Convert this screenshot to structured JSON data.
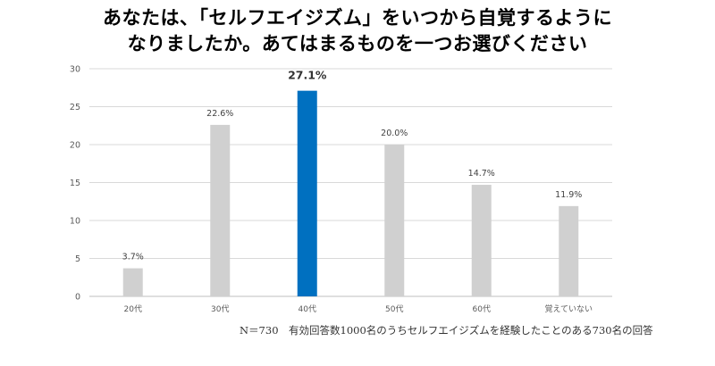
{
  "chart_data": {
    "type": "bar",
    "title_lines": [
      "あなたは、「セルフエイジズム」をいつから自覚するように",
      "なりましたか。あてはまるものを一つお選びください"
    ],
    "categories": [
      "20代",
      "30代",
      "40代",
      "50代",
      "60代",
      "覚えていない"
    ],
    "values": [
      3.7,
      22.6,
      27.1,
      20.0,
      14.7,
      11.9
    ],
    "data_labels": [
      "3.7%",
      "22.6%",
      "27.1%",
      "20.0%",
      "14.7%",
      "11.9%"
    ],
    "highlight_index": 2,
    "y_ticks": [
      0,
      5,
      10,
      15,
      20,
      25,
      30
    ],
    "ylim": [
      0,
      30
    ],
    "grid": true,
    "legend": "none",
    "colors": {
      "bar": "#d0d0d0",
      "highlight": "#0070c0",
      "grid": "#d9d9d9",
      "axis": "#bfbfbf",
      "tick_text": "#595959"
    }
  },
  "footnote": "N＝730　有効回答数1000名のうちセルフエイジズムを経験したことのある730名の回答"
}
